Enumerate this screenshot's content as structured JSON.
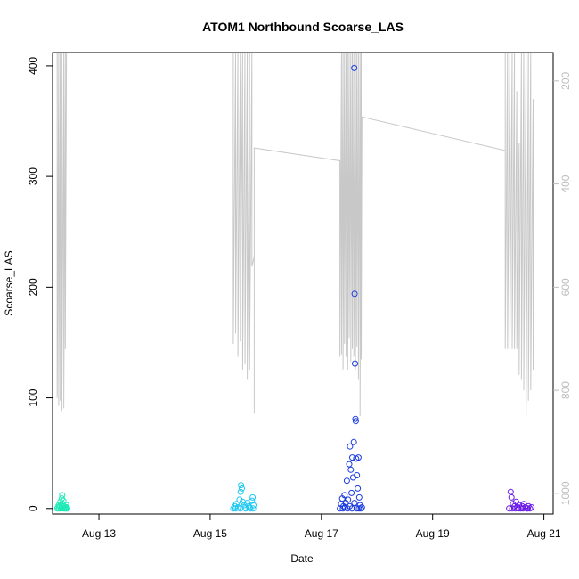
{
  "chart_data": {
    "type": "scatter",
    "title": "ATOM1 Northbound Scoarse_LAS",
    "xlabel": "Date",
    "ylabel": "Scoarse_LAS",
    "xlim": [
      "2023-08-12T04:00",
      "2023-08-21T04:00"
    ],
    "ylim": [
      -5,
      412
    ],
    "y_ticks": [
      0,
      100,
      200,
      300,
      400
    ],
    "x_ticks": [
      {
        "date": "2023-08-13",
        "label": "Aug 13"
      },
      {
        "date": "2023-08-15",
        "label": "Aug 15"
      },
      {
        "date": "2023-08-17",
        "label": "Aug 17"
      },
      {
        "date": "2023-08-19",
        "label": "Aug 19"
      },
      {
        "date": "2023-08-21",
        "label": "Aug 21"
      }
    ],
    "y2": {
      "reversed": true,
      "ylim": [
        1040,
        145
      ],
      "ticks": [
        200,
        400,
        600,
        800,
        1000
      ],
      "color": "#bdbdbd"
    },
    "grid": false,
    "legend": "none",
    "series": [
      {
        "color": "#1de9b6",
        "points": [
          [
            "2023-08-12T06:00",
            0
          ],
          [
            "2023-08-12T06:20",
            1
          ],
          [
            "2023-08-12T06:40",
            3
          ],
          [
            "2023-08-12T07:00",
            2
          ],
          [
            "2023-08-12T07:20",
            6
          ],
          [
            "2023-08-12T07:40",
            0
          ],
          [
            "2023-08-12T08:00",
            9
          ],
          [
            "2023-08-12T08:10",
            12
          ],
          [
            "2023-08-12T08:20",
            4
          ],
          [
            "2023-08-12T08:40",
            7
          ],
          [
            "2023-08-12T09:00",
            2
          ],
          [
            "2023-08-12T09:20",
            0
          ],
          [
            "2023-08-12T09:40",
            1
          ],
          [
            "2023-08-12T10:00",
            3
          ],
          [
            "2023-08-12T10:20",
            0
          ],
          [
            "2023-08-12T06:50",
            0
          ],
          [
            "2023-08-12T07:50",
            1
          ],
          [
            "2023-08-12T08:50",
            0
          ],
          [
            "2023-08-12T09:50",
            0
          ],
          [
            "2023-08-12T10:10",
            1
          ]
        ]
      },
      {
        "color": "#1ec8f2",
        "points": [
          [
            "2023-08-15T10:00",
            0
          ],
          [
            "2023-08-15T10:40",
            2
          ],
          [
            "2023-08-15T11:20",
            4
          ],
          [
            "2023-08-15T12:00",
            1
          ],
          [
            "2023-08-15T12:40",
            8
          ],
          [
            "2023-08-15T13:10",
            15
          ],
          [
            "2023-08-15T13:20",
            21
          ],
          [
            "2023-08-15T13:40",
            18
          ],
          [
            "2023-08-15T14:00",
            6
          ],
          [
            "2023-08-15T14:40",
            3
          ],
          [
            "2023-08-15T15:20",
            0
          ],
          [
            "2023-08-15T16:00",
            5
          ],
          [
            "2023-08-15T16:40",
            2
          ],
          [
            "2023-08-15T17:20",
            0
          ],
          [
            "2023-08-15T18:00",
            7
          ],
          [
            "2023-08-15T18:20",
            10
          ],
          [
            "2023-08-15T18:40",
            3
          ],
          [
            "2023-08-15T11:00",
            0
          ],
          [
            "2023-08-15T13:00",
            0
          ],
          [
            "2023-08-15T15:00",
            1
          ],
          [
            "2023-08-15T17:00",
            1
          ],
          [
            "2023-08-15T18:30",
            0
          ]
        ]
      },
      {
        "color": "#1a3be0",
        "points": [
          [
            "2023-08-17T08:00",
            0
          ],
          [
            "2023-08-17T08:30",
            4
          ],
          [
            "2023-08-17T09:00",
            9
          ],
          [
            "2023-08-17T09:30",
            2
          ],
          [
            "2023-08-17T10:00",
            12
          ],
          [
            "2023-08-17T10:30",
            5
          ],
          [
            "2023-08-17T11:00",
            25
          ],
          [
            "2023-08-17T11:30",
            8
          ],
          [
            "2023-08-17T12:00",
            40
          ],
          [
            "2023-08-17T12:20",
            56
          ],
          [
            "2023-08-17T12:40",
            35
          ],
          [
            "2023-08-17T13:00",
            14
          ],
          [
            "2023-08-17T13:20",
            46
          ],
          [
            "2023-08-17T13:40",
            28
          ],
          [
            "2023-08-17T14:00",
            60
          ],
          [
            "2023-08-17T14:10",
            398
          ],
          [
            "2023-08-17T14:20",
            194
          ],
          [
            "2023-08-17T14:30",
            131
          ],
          [
            "2023-08-17T14:40",
            81
          ],
          [
            "2023-08-17T14:50",
            79
          ],
          [
            "2023-08-17T15:00",
            45
          ],
          [
            "2023-08-17T15:20",
            30
          ],
          [
            "2023-08-17T15:40",
            18
          ],
          [
            "2023-08-17T16:00",
            46
          ],
          [
            "2023-08-17T16:20",
            10
          ],
          [
            "2023-08-17T16:40",
            3
          ],
          [
            "2023-08-17T17:00",
            0
          ],
          [
            "2023-08-17T17:30",
            1
          ],
          [
            "2023-08-17T09:15",
            0
          ],
          [
            "2023-08-17T10:15",
            1
          ],
          [
            "2023-08-17T11:15",
            0
          ],
          [
            "2023-08-17T12:10",
            2
          ],
          [
            "2023-08-17T13:10",
            0
          ],
          [
            "2023-08-17T14:15",
            5
          ],
          [
            "2023-08-17T15:10",
            0
          ],
          [
            "2023-08-17T16:10",
            0
          ]
        ]
      },
      {
        "color": "#6a1ae6",
        "points": [
          [
            "2023-08-20T09:00",
            0
          ],
          [
            "2023-08-20T09:40",
            15
          ],
          [
            "2023-08-20T10:00",
            10
          ],
          [
            "2023-08-20T10:40",
            4
          ],
          [
            "2023-08-20T11:20",
            2
          ],
          [
            "2023-08-20T12:00",
            6
          ],
          [
            "2023-08-20T12:40",
            1
          ],
          [
            "2023-08-20T13:20",
            3
          ],
          [
            "2023-08-20T14:00",
            0
          ],
          [
            "2023-08-20T14:40",
            2
          ],
          [
            "2023-08-20T15:20",
            4
          ],
          [
            "2023-08-20T16:00",
            1
          ],
          [
            "2023-08-20T16:40",
            0
          ],
          [
            "2023-08-20T17:20",
            2
          ],
          [
            "2023-08-20T18:00",
            0
          ],
          [
            "2023-08-20T18:40",
            1
          ],
          [
            "2023-08-20T10:20",
            0
          ],
          [
            "2023-08-20T11:40",
            0
          ],
          [
            "2023-08-20T13:00",
            0
          ],
          [
            "2023-08-20T15:00",
            0
          ],
          [
            "2023-08-20T17:00",
            0
          ]
        ]
      }
    ],
    "line_y2": {
      "color": "#c8c8c8",
      "points": [
        [
          "2023-08-12T06:00",
          145
        ],
        [
          "2023-08-12T06:00",
          815
        ],
        [
          "2023-08-12T06:40",
          145
        ],
        [
          "2023-08-12T06:40",
          830
        ],
        [
          "2023-08-12T07:20",
          145
        ],
        [
          "2023-08-12T07:20",
          820
        ],
        [
          "2023-08-12T08:00",
          145
        ],
        [
          "2023-08-12T08:00",
          840
        ],
        [
          "2023-08-12T08:50",
          145
        ],
        [
          "2023-08-12T08:50",
          835
        ],
        [
          "2023-08-12T09:30",
          145
        ],
        [
          "2023-08-12T09:30",
          720
        ],
        [
          "2023-08-12T10:00",
          145
        ],
        [
          "2023-08-15T10:00",
          145
        ],
        [
          "2023-08-15T10:00",
          710
        ],
        [
          "2023-08-15T11:00",
          145
        ],
        [
          "2023-08-15T11:00",
          690
        ],
        [
          "2023-08-15T12:00",
          145
        ],
        [
          "2023-08-15T12:00",
          735
        ],
        [
          "2023-08-15T13:00",
          145
        ],
        [
          "2023-08-15T13:00",
          705
        ],
        [
          "2023-08-15T14:00",
          145
        ],
        [
          "2023-08-15T14:00",
          760
        ],
        [
          "2023-08-15T15:00",
          145
        ],
        [
          "2023-08-15T15:00",
          750
        ],
        [
          "2023-08-15T16:00",
          145
        ],
        [
          "2023-08-15T16:00",
          780
        ],
        [
          "2023-08-15T17:00",
          145
        ],
        [
          "2023-08-15T17:00",
          760
        ],
        [
          "2023-08-15T18:00",
          145
        ],
        [
          "2023-08-15T18:00",
          560
        ],
        [
          "2023-08-15T19:00",
          540
        ],
        [
          "2023-08-15T19:00",
          845
        ],
        [
          "2023-08-15T19:00",
          330
        ],
        [
          "2023-08-17T08:00",
          355
        ],
        [
          "2023-08-17T08:00",
          735
        ],
        [
          "2023-08-17T08:40",
          145
        ],
        [
          "2023-08-17T08:40",
          730
        ],
        [
          "2023-08-17T09:20",
          145
        ],
        [
          "2023-08-17T09:20",
          760
        ],
        [
          "2023-08-17T10:00",
          145
        ],
        [
          "2023-08-17T10:00",
          710
        ],
        [
          "2023-08-17T10:40",
          145
        ],
        [
          "2023-08-17T10:40",
          735
        ],
        [
          "2023-08-17T11:20",
          145
        ],
        [
          "2023-08-17T11:20",
          760
        ],
        [
          "2023-08-17T12:00",
          145
        ],
        [
          "2023-08-17T12:00",
          700
        ],
        [
          "2023-08-17T12:40",
          145
        ],
        [
          "2023-08-17T12:40",
          745
        ],
        [
          "2023-08-17T13:20",
          145
        ],
        [
          "2023-08-17T13:20",
          720
        ],
        [
          "2023-08-17T14:00",
          145
        ],
        [
          "2023-08-17T14:00",
          735
        ],
        [
          "2023-08-17T14:40",
          145
        ],
        [
          "2023-08-17T14:40",
          760
        ],
        [
          "2023-08-17T15:20",
          145
        ],
        [
          "2023-08-17T15:20",
          715
        ],
        [
          "2023-08-17T16:00",
          145
        ],
        [
          "2023-08-17T16:00",
          780
        ],
        [
          "2023-08-17T16:40",
          145
        ],
        [
          "2023-08-17T16:40",
          850
        ],
        [
          "2023-08-17T17:10",
          145
        ],
        [
          "2023-08-17T17:10",
          740
        ],
        [
          "2023-08-17T17:30",
          270
        ],
        [
          "2023-08-20T07:20",
          335
        ],
        [
          "2023-08-20T07:20",
          145
        ],
        [
          "2023-08-20T07:20",
          720
        ],
        [
          "2023-08-20T08:20",
          145
        ],
        [
          "2023-08-20T08:20",
          720
        ],
        [
          "2023-08-20T09:20",
          145
        ],
        [
          "2023-08-20T09:20",
          720
        ],
        [
          "2023-08-20T10:20",
          145
        ],
        [
          "2023-08-20T10:20",
          720
        ],
        [
          "2023-08-20T11:20",
          145
        ],
        [
          "2023-08-20T11:20",
          720
        ],
        [
          "2023-08-20T12:20",
          220
        ],
        [
          "2023-08-20T12:20",
          720
        ],
        [
          "2023-08-20T13:20",
          320
        ],
        [
          "2023-08-20T13:20",
          770
        ],
        [
          "2023-08-20T14:20",
          145
        ],
        [
          "2023-08-20T14:20",
          780
        ],
        [
          "2023-08-20T15:20",
          145
        ],
        [
          "2023-08-20T15:20",
          800
        ],
        [
          "2023-08-20T16:20",
          145
        ],
        [
          "2023-08-20T16:20",
          850
        ],
        [
          "2023-08-20T17:20",
          145
        ],
        [
          "2023-08-20T17:20",
          820
        ],
        [
          "2023-08-20T18:20",
          145
        ],
        [
          "2023-08-20T18:20",
          800
        ],
        [
          "2023-08-20T19:20",
          235
        ],
        [
          "2023-08-20T19:20",
          760
        ]
      ]
    }
  }
}
